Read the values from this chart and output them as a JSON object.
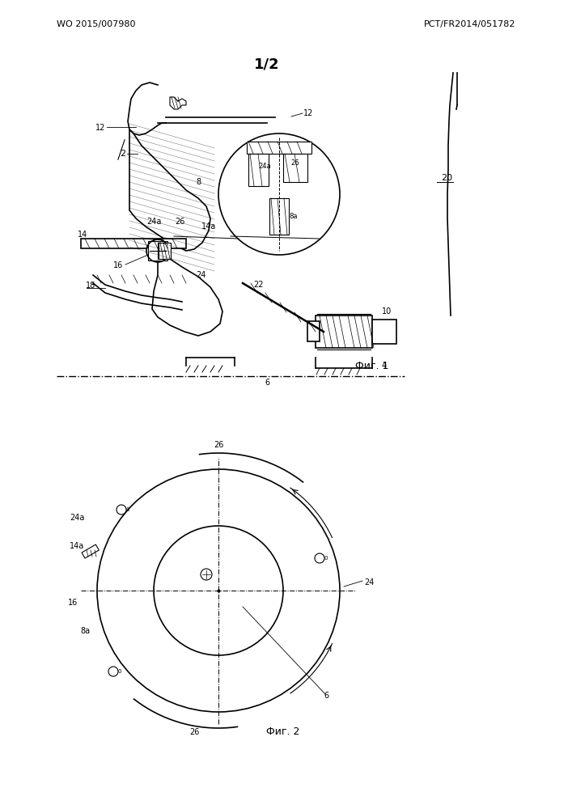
{
  "header_left": "WO 2015/007980",
  "header_right": "PCT/FR2014/051782",
  "page_label": "1/2",
  "fig1_caption": "Фиг. 1",
  "fig2_caption": "Фиг. 2",
  "bg_color": "#ffffff",
  "line_color": "#000000",
  "hatch_color": "#000000",
  "text_color": "#000000"
}
